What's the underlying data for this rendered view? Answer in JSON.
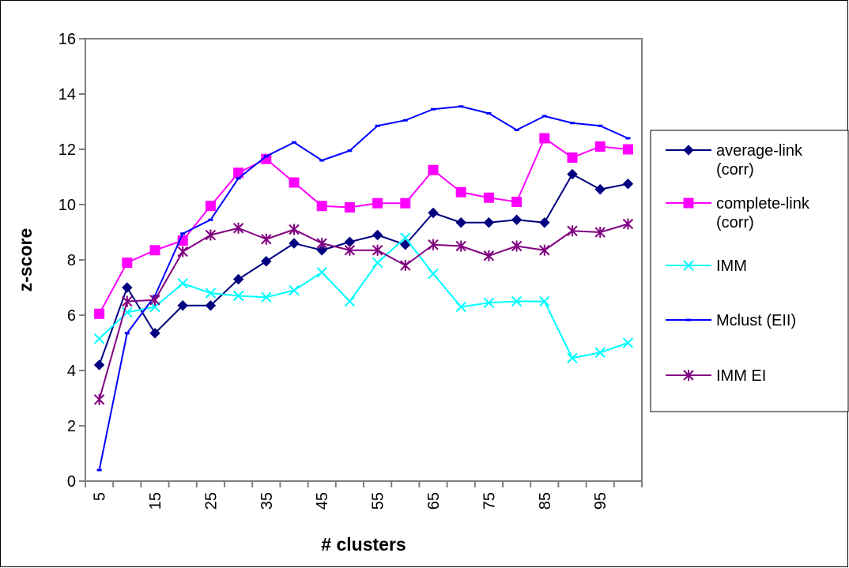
{
  "chart_data": {
    "type": "line",
    "title": "",
    "xlabel": "# clusters",
    "ylabel": "z-score",
    "ylim": [
      0,
      16
    ],
    "yticks": [
      0,
      2,
      4,
      6,
      8,
      10,
      12,
      14,
      16
    ],
    "x": [
      5,
      10,
      15,
      20,
      25,
      30,
      35,
      40,
      45,
      50,
      55,
      60,
      65,
      70,
      75,
      80,
      85,
      90,
      95,
      100
    ],
    "xtick_labels": [
      "5",
      "15",
      "25",
      "35",
      "45",
      "55",
      "65",
      "75",
      "85",
      "95"
    ],
    "grid": false,
    "legend_position": "right",
    "series": [
      {
        "name": "average-link (corr)",
        "legend_lines": [
          "average-link",
          "(corr)"
        ],
        "color": "#000080",
        "marker": "diamond",
        "values": [
          4.2,
          7.0,
          5.35,
          6.35,
          6.35,
          7.3,
          7.95,
          8.6,
          8.35,
          8.65,
          8.9,
          8.55,
          9.7,
          9.35,
          9.35,
          9.45,
          9.35,
          11.1,
          10.55,
          10.75
        ]
      },
      {
        "name": "complete-link (corr)",
        "legend_lines": [
          "complete-link",
          "(corr)"
        ],
        "color": "#FF00FF",
        "marker": "square",
        "values": [
          6.05,
          7.9,
          8.35,
          8.7,
          9.95,
          11.15,
          11.65,
          10.8,
          9.95,
          9.9,
          10.05,
          10.05,
          11.25,
          10.45,
          10.25,
          10.1,
          12.4,
          11.7,
          12.1,
          12.0
        ]
      },
      {
        "name": "IMM",
        "legend_lines": [
          "IMM"
        ],
        "color": "#00FFFF",
        "marker": "x",
        "values": [
          5.15,
          6.1,
          6.3,
          7.15,
          6.8,
          6.7,
          6.65,
          6.9,
          7.55,
          6.5,
          7.9,
          8.8,
          7.5,
          6.3,
          6.45,
          6.5,
          6.5,
          4.45,
          4.65,
          5.0
        ]
      },
      {
        "name": "Mclust (EII)",
        "legend_lines": [
          "Mclust (EII)"
        ],
        "color": "#0000FF",
        "marker": "dash",
        "values": [
          0.4,
          5.35,
          6.7,
          8.95,
          9.45,
          10.95,
          11.75,
          12.25,
          11.6,
          11.95,
          12.85,
          13.05,
          13.45,
          13.55,
          13.3,
          12.7,
          13.2,
          12.95,
          12.85,
          12.4
        ]
      },
      {
        "name": "IMM EI",
        "legend_lines": [
          "IMM EI"
        ],
        "color": "#800080",
        "marker": "star",
        "values": [
          2.95,
          6.5,
          6.55,
          8.3,
          8.9,
          9.15,
          8.75,
          9.1,
          8.6,
          8.35,
          8.35,
          7.8,
          8.55,
          8.5,
          8.15,
          8.5,
          8.35,
          9.05,
          9.0,
          9.3
        ]
      }
    ]
  }
}
